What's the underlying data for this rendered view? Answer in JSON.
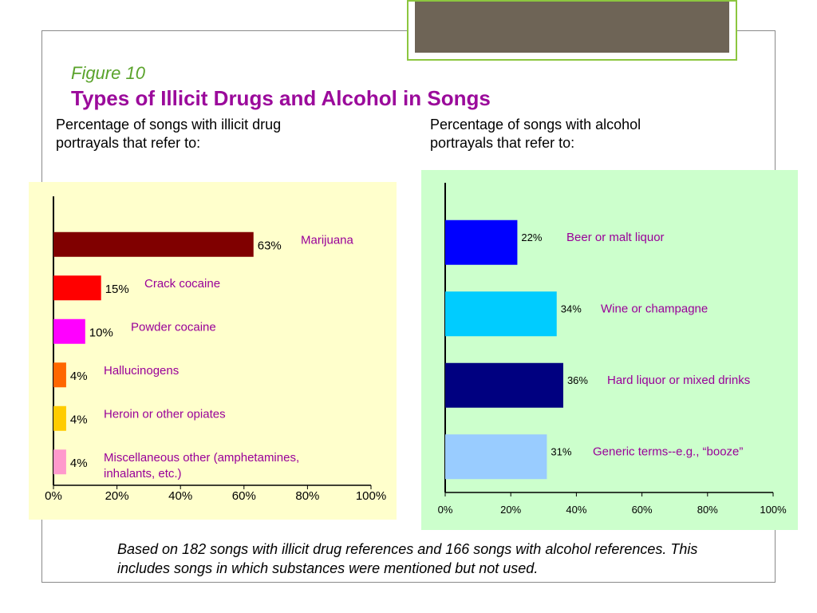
{
  "figure": {
    "label": "Figure 10",
    "title": "Types of Illicit Drugs and Alcohol in Songs",
    "sub_left_line1": "Percentage of songs with illicit drug",
    "sub_left_line2": "portrayals that refer to:",
    "sub_right_line1": "Percentage of songs with alcohol",
    "sub_right_line2": "portrayals that refer to:"
  },
  "footnote": {
    "line1": "Based on 182 songs with illicit drug references and 166 songs with alcohol references.  This",
    "line2": "includes songs in which substances were mentioned but not used."
  },
  "colors": {
    "drug_panel_bg": "#ffffcc",
    "alcohol_panel_bg": "#ccffcc",
    "label_color": "#990099",
    "title_color": "#9b0a9b",
    "figure_label_color": "#5aa32b"
  },
  "chart_data": [
    {
      "type": "bar",
      "orientation": "horizontal",
      "categories": [
        "Marijuana",
        "Crack cocaine",
        "Powder cocaine",
        "Hallucinogens",
        "Heroin or other opiates",
        "Miscellaneous other (amphetamines, inhalants, etc.)"
      ],
      "category_lines": [
        [
          "Marijuana"
        ],
        [
          "Crack cocaine"
        ],
        [
          "Powder cocaine"
        ],
        [
          "Hallucinogens"
        ],
        [
          "Heroin or other opiates"
        ],
        [
          "Miscellaneous other (amphetamines,",
          "inhalants, etc.)"
        ]
      ],
      "values": [
        63,
        15,
        10,
        4,
        4,
        4
      ],
      "value_labels": [
        "63%",
        "15%",
        "10%",
        "4%",
        "4%",
        "4%"
      ],
      "colors": [
        "#800000",
        "#ff0000",
        "#ff00ff",
        "#ff6600",
        "#ffcc00",
        "#ff99cc"
      ],
      "xlim": [
        0,
        100
      ],
      "xticks": [
        "0%",
        "20%",
        "40%",
        "60%",
        "80%",
        "100%"
      ],
      "grid": false,
      "legend": "none"
    },
    {
      "type": "bar",
      "orientation": "horizontal",
      "categories": [
        "Beer or malt liquor",
        "Wine or champagne",
        "Hard liquor or mixed drinks",
        "Generic terms--e.g., “booze”"
      ],
      "category_lines": [
        [
          "Beer or malt liquor"
        ],
        [
          "Wine or champagne"
        ],
        [
          "Hard liquor or mixed drinks"
        ],
        [
          "Generic terms--e.g., “booze”"
        ]
      ],
      "values": [
        22,
        34,
        36,
        31
      ],
      "value_labels": [
        "22%",
        "34%",
        "36%",
        "31%"
      ],
      "colors": [
        "#0000ff",
        "#00ccff",
        "#000080",
        "#99ccff"
      ],
      "xlim": [
        0,
        100
      ],
      "xticks": [
        "0%",
        "20%",
        "40%",
        "60%",
        "80%",
        "100%"
      ],
      "grid": false,
      "legend": "none"
    }
  ]
}
